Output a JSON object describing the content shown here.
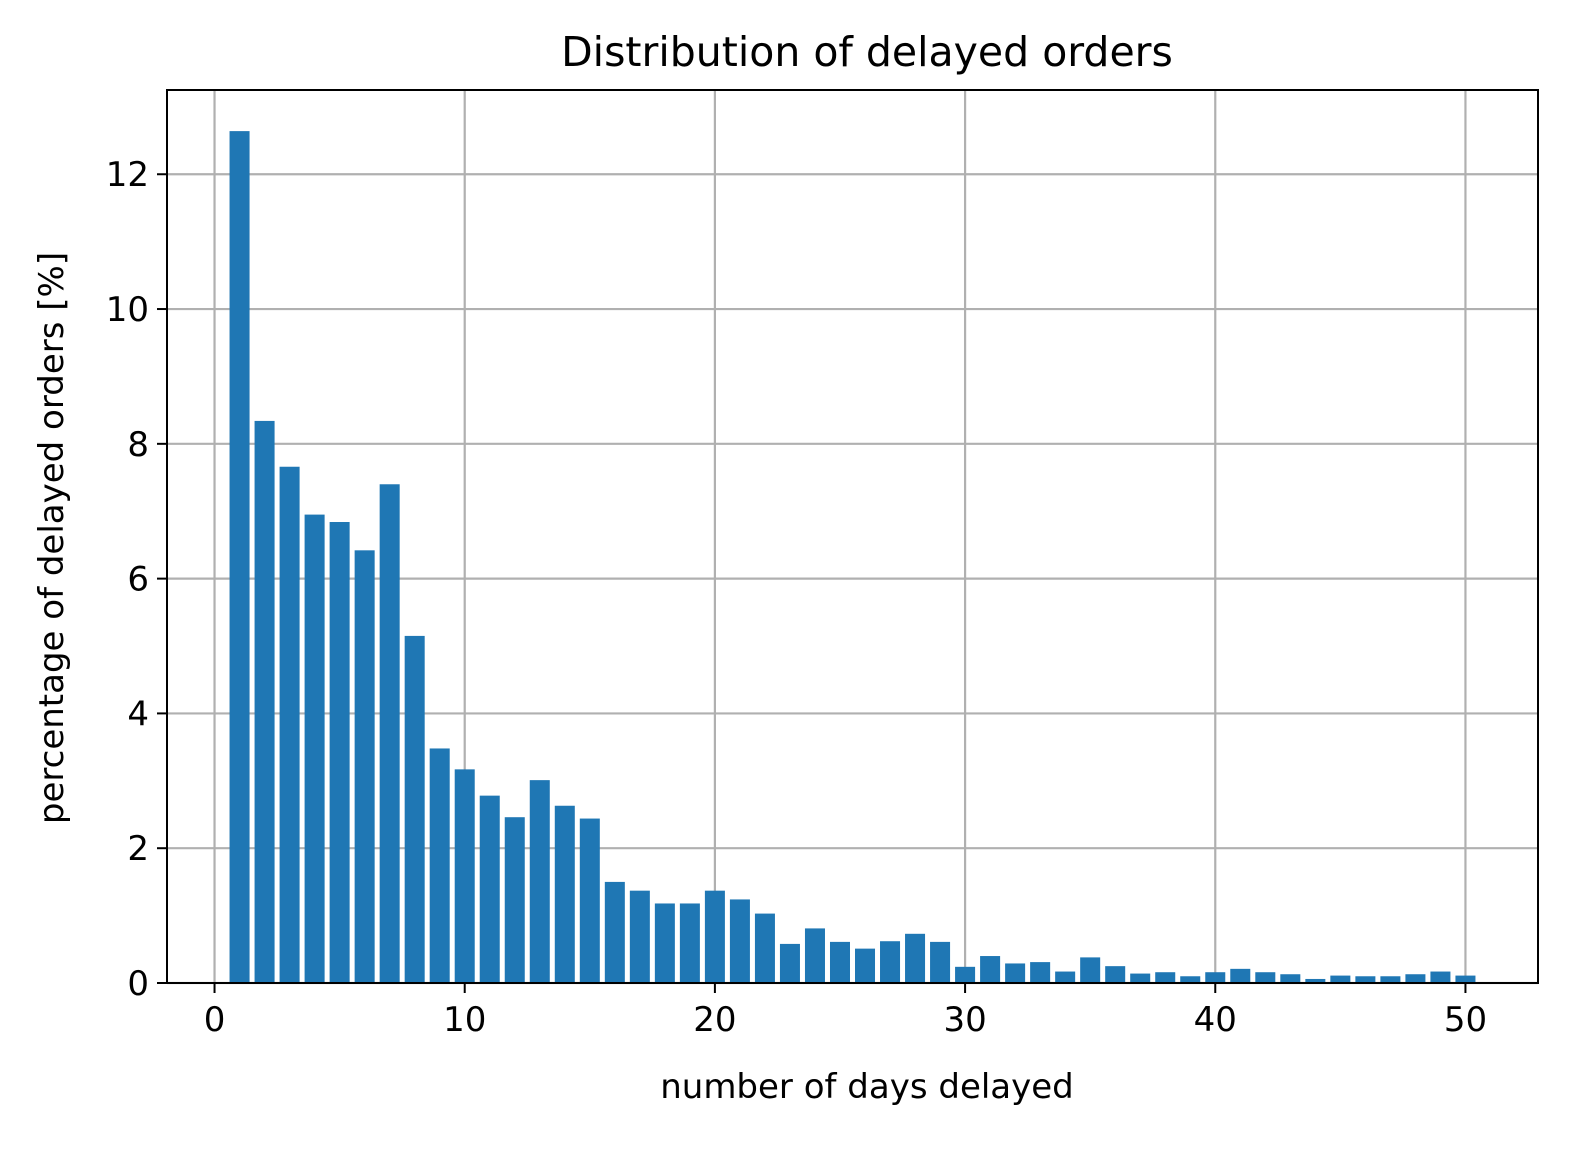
{
  "chart_data": {
    "type": "bar",
    "title": "Distribution of delayed orders",
    "xlabel": "number of days delayed",
    "ylabel": "percentage of delayed orders [%]",
    "xlim": [
      -1.9,
      52.9
    ],
    "ylim": [
      0,
      13.25
    ],
    "xticks": [
      0,
      10,
      20,
      30,
      40,
      50
    ],
    "yticks": [
      0,
      2,
      4,
      6,
      8,
      10,
      12
    ],
    "xtick_labels": [
      "0",
      "10",
      "20",
      "30",
      "40",
      "50"
    ],
    "ytick_labels": [
      "0",
      "2",
      "4",
      "6",
      "8",
      "10",
      "12"
    ],
    "grid": true,
    "bar_color": "#1f77b4",
    "x": [
      1,
      2,
      3,
      4,
      5,
      6,
      7,
      8,
      9,
      10,
      11,
      12,
      13,
      14,
      15,
      16,
      17,
      18,
      19,
      20,
      21,
      22,
      23,
      24,
      25,
      26,
      27,
      28,
      29,
      30,
      31,
      32,
      33,
      34,
      35,
      36,
      37,
      38,
      39,
      40,
      41,
      42,
      43,
      44,
      45,
      46,
      47,
      48,
      49,
      50
    ],
    "values": [
      12.64,
      8.34,
      7.66,
      6.95,
      6.84,
      6.42,
      7.4,
      5.15,
      3.48,
      3.17,
      2.78,
      2.46,
      3.01,
      2.63,
      2.44,
      1.5,
      1.37,
      1.18,
      1.18,
      1.37,
      1.24,
      1.03,
      0.58,
      0.81,
      0.61,
      0.51,
      0.62,
      0.73,
      0.61,
      0.24,
      0.4,
      0.29,
      0.31,
      0.17,
      0.38,
      0.25,
      0.14,
      0.16,
      0.1,
      0.16,
      0.21,
      0.16,
      0.13,
      0.06,
      0.11,
      0.1,
      0.1,
      0.13,
      0.17,
      0.11
    ]
  }
}
